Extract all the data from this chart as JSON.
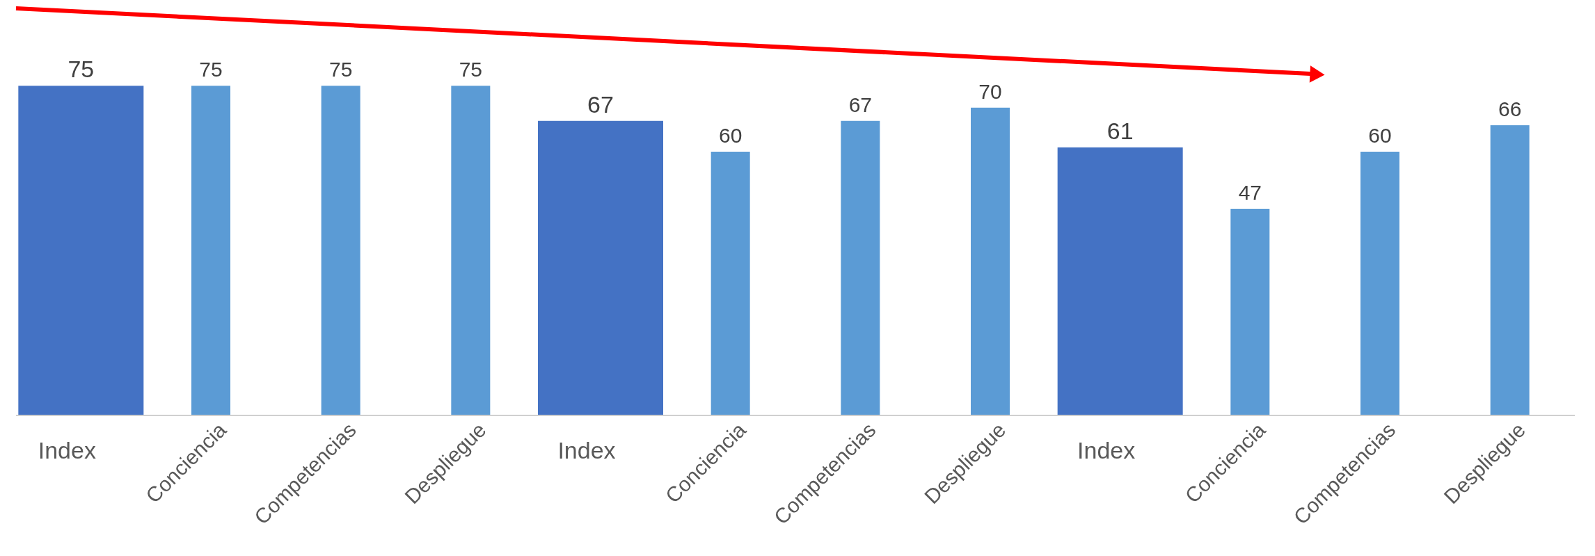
{
  "chart_data": {
    "type": "bar",
    "categories": [
      "Index",
      "Conciencia",
      "Competencias",
      "Despliegue",
      "Index",
      "Conciencia",
      "Competencias",
      "Despliegue",
      "Index",
      "Conciencia",
      "Competencias",
      "Despliegue"
    ],
    "series": [
      {
        "color": "#4472c4",
        "values": [
          75,
          null,
          null,
          null,
          67,
          null,
          null,
          null,
          61,
          null,
          null,
          null
        ]
      },
      {
        "color": "#5b9bd5",
        "values": [
          null,
          75,
          75,
          75,
          null,
          60,
          67,
          70,
          null,
          47,
          60,
          66
        ]
      }
    ],
    "relative": false,
    "data_labels": true
  }
}
